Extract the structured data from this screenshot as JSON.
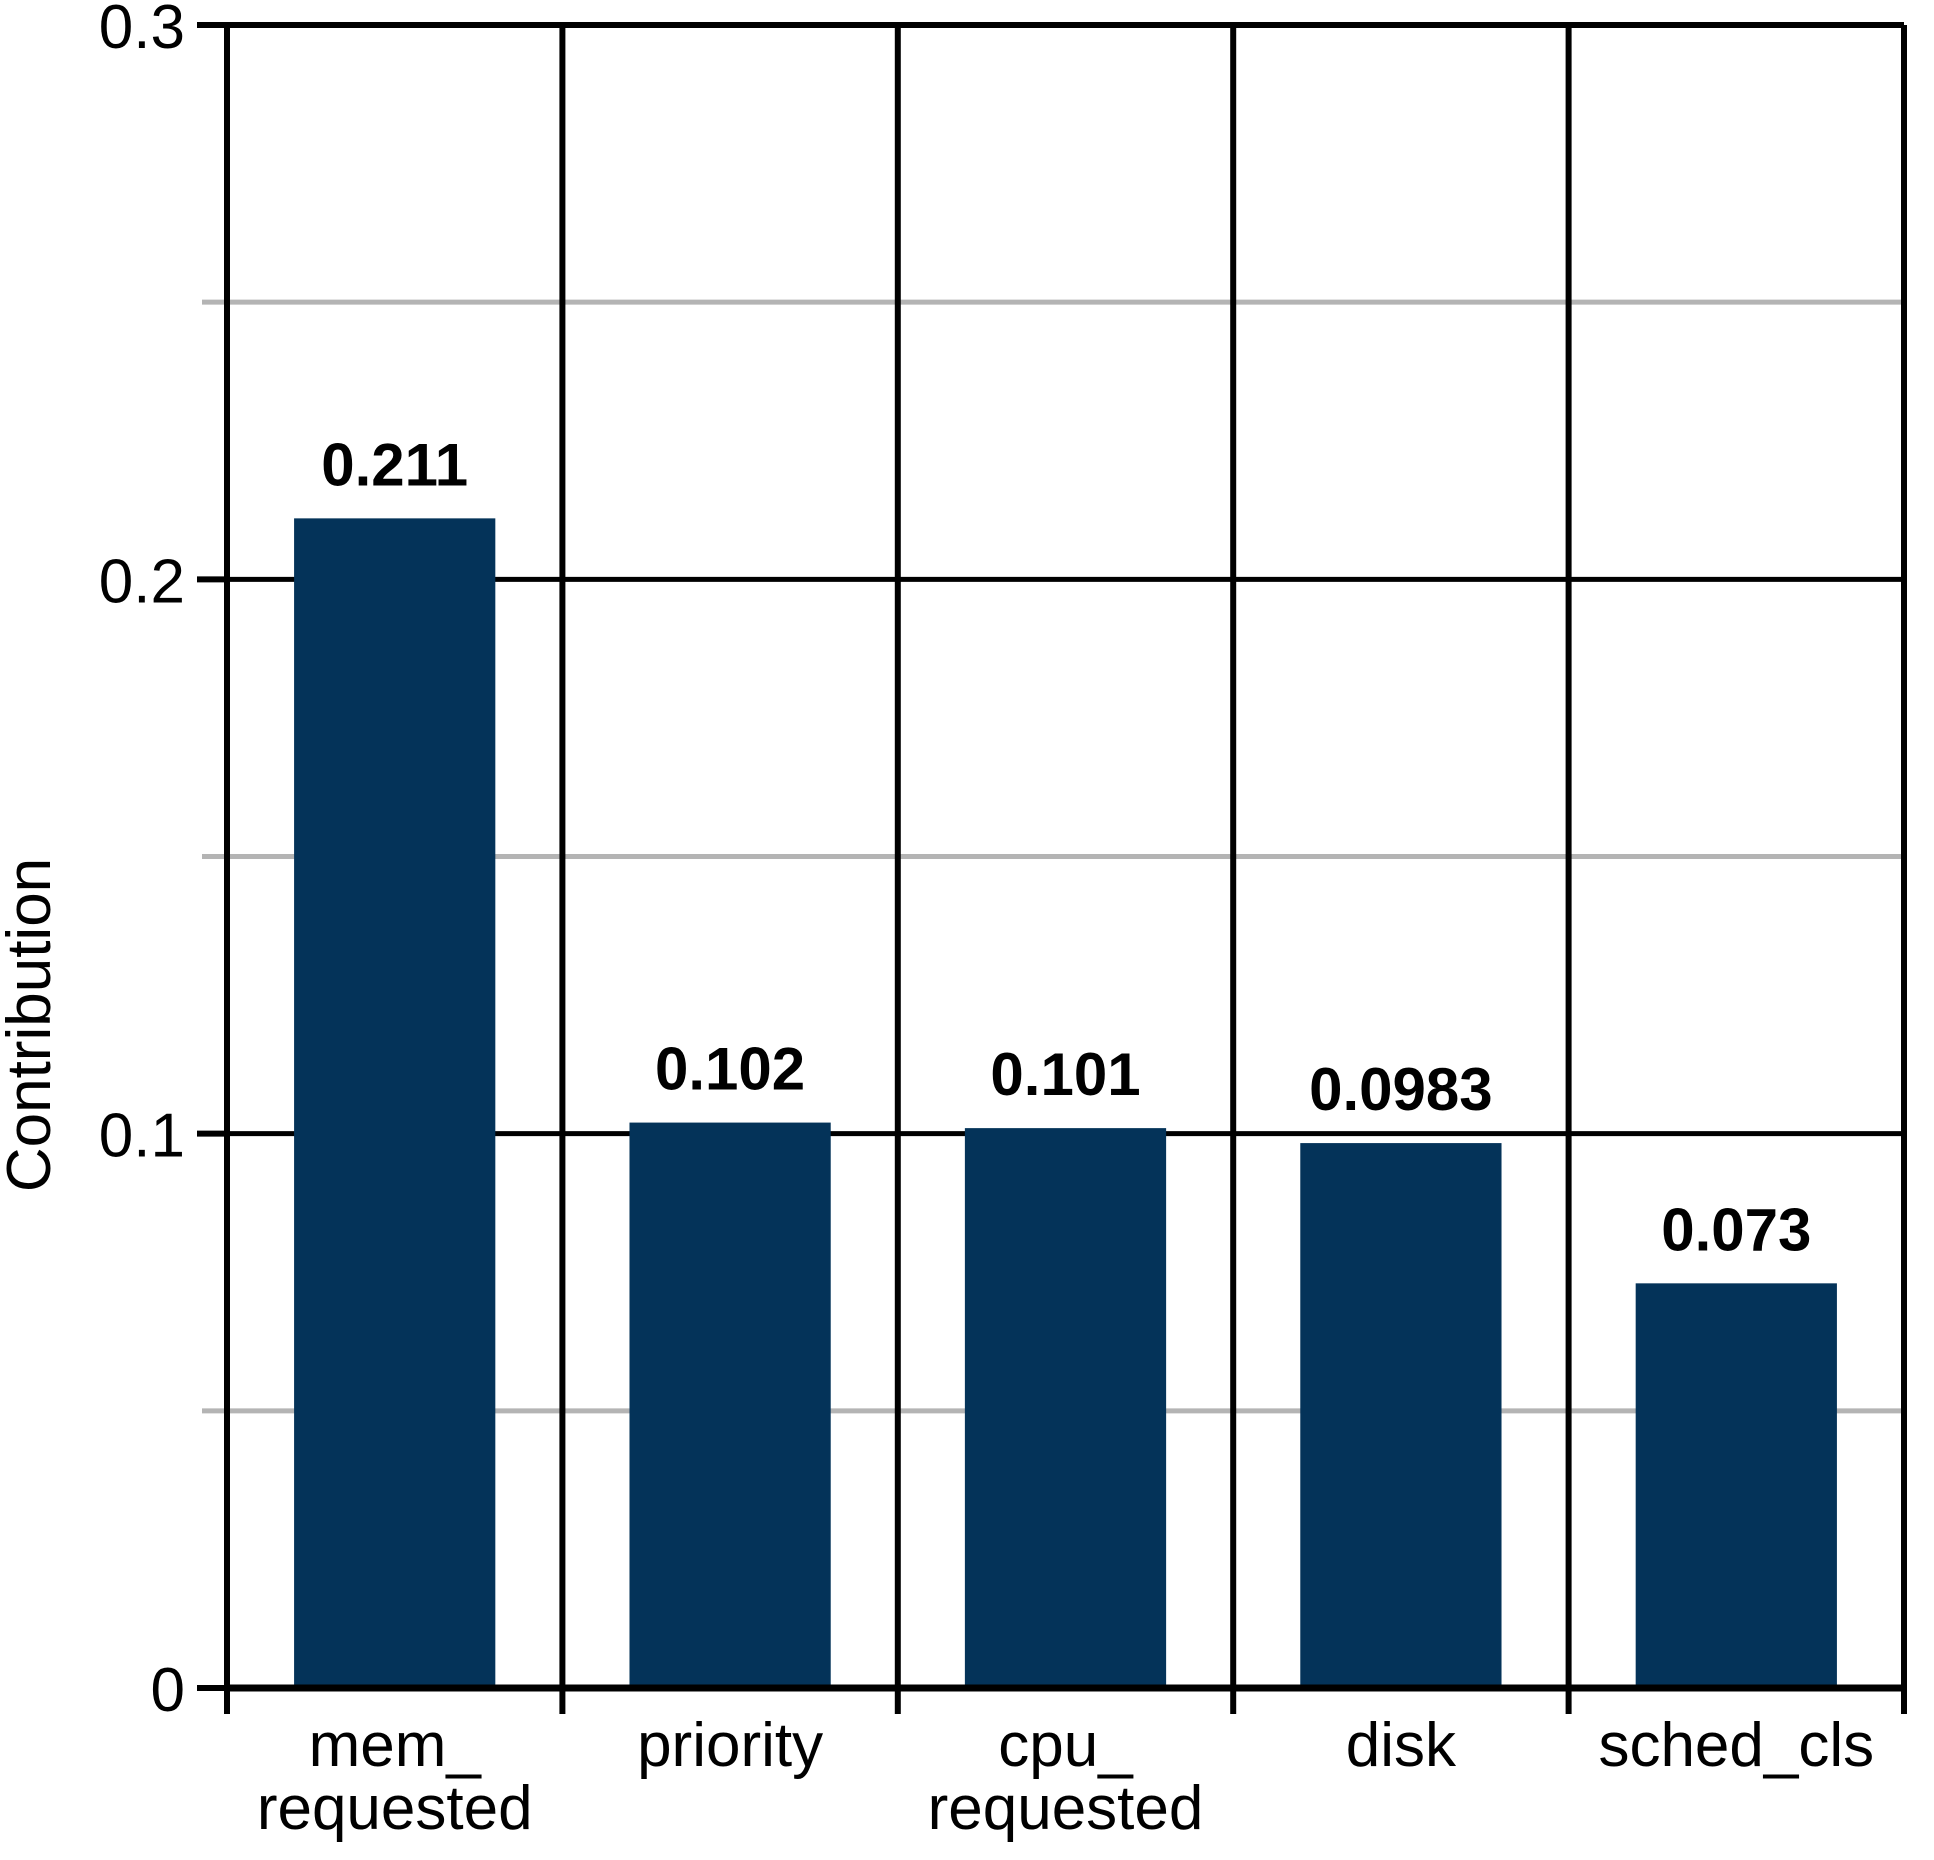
{
  "chart_data": {
    "type": "bar",
    "ylabel": "Contribution",
    "xlabel": "",
    "ylim": [
      0,
      0.3
    ],
    "yticks_major": [
      0,
      0.1,
      0.2,
      0.3
    ],
    "ytick_labels": [
      "0",
      "0.1",
      "0.2",
      "0.3"
    ],
    "yticks_minor": [
      0.05,
      0.15,
      0.25
    ],
    "categories": [
      "mem_requested",
      "priority",
      "cpu_requested",
      "disk",
      "sched_cls"
    ],
    "category_label_lines": [
      [
        "mem_",
        "requested"
      ],
      [
        "priority"
      ],
      [
        "cpu_",
        "requested"
      ],
      [
        "disk"
      ],
      [
        "sched_cls"
      ]
    ],
    "values": [
      0.211,
      0.102,
      0.101,
      0.0983,
      0.073
    ],
    "value_labels": [
      "0.211",
      "0.102",
      "0.101",
      "0.0983",
      "0.073"
    ],
    "grid": "major-and-minor-horizontal-plus-column-separators",
    "legend_position": "none",
    "colors": {
      "bar": "#043359",
      "major_grid": "#000000",
      "minor_grid": "#b4b4b4",
      "axis": "#000000",
      "text": "#000000",
      "background": "#ffffff"
    }
  }
}
